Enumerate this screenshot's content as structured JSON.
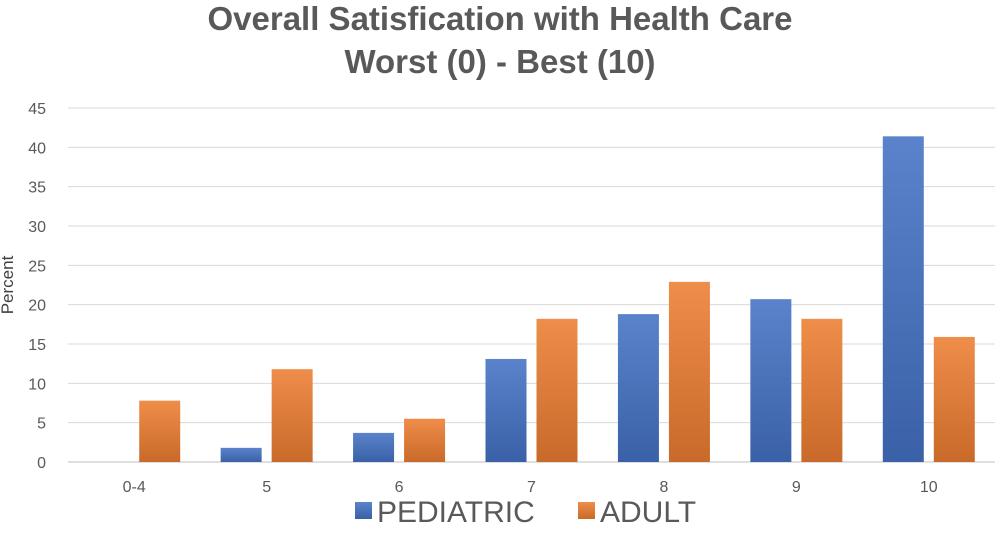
{
  "chart_data": {
    "type": "bar",
    "title": "Overall Satisfication with Health Care",
    "subtitle": "Worst (0) - Best (10)",
    "xlabel": "",
    "ylabel": "Percent",
    "ylim": [
      0,
      45
    ],
    "ytick_step": 5,
    "grid": true,
    "legend_position": "bottom",
    "categories": [
      "0-4",
      "5",
      "6",
      "7",
      "8",
      "9",
      "10"
    ],
    "series": [
      {
        "name": "PEDIATRIC",
        "color": "#4472C4",
        "values": [
          0,
          1.8,
          3.7,
          13.1,
          18.8,
          20.7,
          41.4
        ]
      },
      {
        "name": "ADULT",
        "color": "#ED7D31",
        "values": [
          7.8,
          11.8,
          5.5,
          18.2,
          22.9,
          18.2,
          15.9
        ]
      }
    ]
  }
}
